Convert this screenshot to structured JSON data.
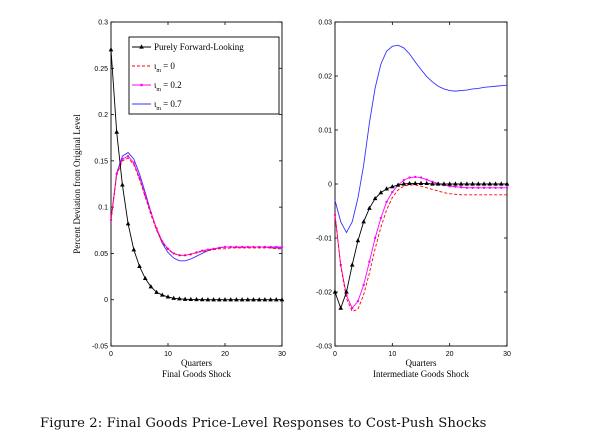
{
  "caption": "Figure 2: Final Goods Price-Level Responses to Cost-Push Shocks",
  "ylabel": "Percent Deviation from Original Level",
  "legend": {
    "placement": "top-right",
    "entries": [
      {
        "label": "Purely Forward-Looking",
        "color": "#000000",
        "style": "solid-triangle"
      },
      {
        "label_sym": "ι",
        "label_sub": "m",
        "label_val": "= 0",
        "color": "#ff0000",
        "style": "dashed"
      },
      {
        "label_sym": "ι",
        "label_sub": "m",
        "label_val": "= 0.2",
        "color": "#ff00ff",
        "style": "solid-dot"
      },
      {
        "label_sym": "ι",
        "label_sub": "m",
        "label_val": "= 0.7",
        "color": "#3333ff",
        "style": "solid"
      }
    ]
  },
  "chart_data": [
    {
      "type": "line",
      "title": "Final Goods Shock",
      "xlabel": "Quarters",
      "ylabel": "Percent Deviation from Original Level",
      "xlim": [
        0,
        30
      ],
      "ylim": [
        -0.05,
        0.3
      ],
      "xticks": [
        "0",
        "10",
        "20",
        "30"
      ],
      "yticks": [
        "-0.05",
        "0",
        "0.05",
        "0.1",
        "0.15",
        "0.2",
        "0.25",
        "0.3"
      ],
      "grid": false,
      "x": [
        0,
        1,
        2,
        3,
        4,
        5,
        6,
        7,
        8,
        9,
        10,
        11,
        12,
        13,
        14,
        15,
        16,
        17,
        18,
        19,
        20,
        21,
        22,
        23,
        24,
        25,
        26,
        27,
        28,
        29,
        30
      ],
      "series": [
        {
          "name": "Purely Forward-Looking",
          "color": "#000000",
          "values": [
            0.27,
            0.181,
            0.124,
            0.082,
            0.054,
            0.036,
            0.023,
            0.014,
            0.008,
            0.005,
            0.003,
            0.0015,
            0.001,
            0.0005,
            0.0003,
            0.0002,
            0.0001,
            0,
            0,
            0,
            0,
            0,
            0,
            0,
            0,
            0,
            0,
            0,
            0,
            0,
            0
          ]
        },
        {
          "name": "ι_m = 0",
          "color": "#ff0000",
          "values": [
            0.086,
            0.135,
            0.15,
            0.153,
            0.146,
            0.13,
            0.111,
            0.092,
            0.075,
            0.062,
            0.054,
            0.05,
            0.048,
            0.048,
            0.049,
            0.051,
            0.052,
            0.053,
            0.054,
            0.055,
            0.055,
            0.056,
            0.056,
            0.056,
            0.056,
            0.056,
            0.056,
            0.056,
            0.056,
            0.055,
            0.055
          ]
        },
        {
          "name": "ι_m = 0.2",
          "color": "#ff00ff",
          "values": [
            0.086,
            0.136,
            0.152,
            0.155,
            0.148,
            0.132,
            0.113,
            0.094,
            0.077,
            0.063,
            0.055,
            0.05,
            0.048,
            0.048,
            0.049,
            0.051,
            0.053,
            0.054,
            0.055,
            0.056,
            0.057,
            0.057,
            0.057,
            0.057,
            0.057,
            0.057,
            0.057,
            0.057,
            0.057,
            0.057,
            0.057
          ]
        },
        {
          "name": "ι_m = 0.7",
          "color": "#3333ff",
          "values": [
            0.086,
            0.137,
            0.155,
            0.159,
            0.152,
            0.136,
            0.116,
            0.095,
            0.076,
            0.061,
            0.051,
            0.045,
            0.042,
            0.042,
            0.044,
            0.047,
            0.05,
            0.053,
            0.055,
            0.056,
            0.057,
            0.057,
            0.057,
            0.057,
            0.057,
            0.057,
            0.057,
            0.057,
            0.056,
            0.056,
            0.056
          ]
        }
      ]
    },
    {
      "type": "line",
      "title": "Intermediate Goods Shock",
      "xlabel": "Quarters",
      "ylabel": "",
      "xlim": [
        0,
        30
      ],
      "ylim": [
        -0.03,
        0.03
      ],
      "xticks": [
        "0",
        "10",
        "20",
        "30"
      ],
      "yticks": [
        "-0.03",
        "-0.02",
        "-0.01",
        "0",
        "0.01",
        "0.02",
        "0.03"
      ],
      "grid": false,
      "x": [
        0,
        1,
        2,
        3,
        4,
        5,
        6,
        7,
        8,
        9,
        10,
        11,
        12,
        13,
        14,
        15,
        16,
        17,
        18,
        19,
        20,
        21,
        22,
        23,
        24,
        25,
        26,
        27,
        28,
        29,
        30
      ],
      "series": [
        {
          "name": "Purely Forward-Looking",
          "color": "#000000",
          "values": [
            -0.02,
            -0.023,
            -0.02,
            -0.015,
            -0.0105,
            -0.007,
            -0.0045,
            -0.0027,
            -0.0016,
            -0.0009,
            -0.0005,
            -0.0002,
            0,
            0.0001,
            0.0001,
            0.0001,
            0.0001,
            0,
            0,
            0,
            0,
            0,
            0,
            0,
            0,
            0,
            0,
            0,
            0,
            0,
            0
          ]
        },
        {
          "name": "ι_m = 0",
          "color": "#ff0000",
          "values": [
            -0.0057,
            -0.0152,
            -0.0212,
            -0.0236,
            -0.0232,
            -0.0205,
            -0.0165,
            -0.012,
            -0.008,
            -0.0048,
            -0.0025,
            -0.0011,
            -0.0004,
            -0.0002,
            -0.0002,
            -0.0004,
            -0.0007,
            -0.001,
            -0.0013,
            -0.0016,
            -0.0018,
            -0.0019,
            -0.002,
            -0.002,
            -0.002,
            -0.002,
            -0.002,
            -0.002,
            -0.002,
            -0.002,
            -0.002
          ]
        },
        {
          "name": "ι_m = 0.2",
          "color": "#ff00ff",
          "values": [
            -0.0057,
            -0.015,
            -0.0206,
            -0.023,
            -0.0217,
            -0.0187,
            -0.0144,
            -0.01,
            -0.0063,
            -0.0033,
            -0.0015,
            -0.0002,
            0.0007,
            0.0012,
            0.0013,
            0.0012,
            0.0008,
            0.0004,
            0.0001,
            -0.0002,
            -0.0004,
            -0.0005,
            -0.0006,
            -0.0007,
            -0.0007,
            -0.0007,
            -0.0007,
            -0.0007,
            -0.0007,
            -0.0007,
            -0.0007
          ]
        },
        {
          "name": "ι_m = 0.7",
          "color": "#3333ff",
          "values": [
            -0.003,
            -0.007,
            -0.009,
            -0.007,
            -0.0026,
            0.0035,
            0.0113,
            0.0178,
            0.0222,
            0.0246,
            0.0255,
            0.0257,
            0.0252,
            0.0241,
            0.0226,
            0.0212,
            0.0199,
            0.0189,
            0.0181,
            0.0176,
            0.0173,
            0.0172,
            0.0173,
            0.0174,
            0.0176,
            0.0177,
            0.0179,
            0.018,
            0.0181,
            0.0182,
            0.0183
          ]
        }
      ]
    }
  ]
}
